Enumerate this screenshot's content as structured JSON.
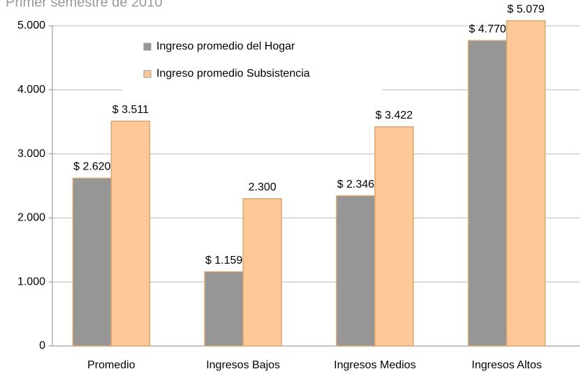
{
  "chart_data": {
    "type": "bar",
    "title": "Primer semestre de 2010",
    "categories": [
      "Promedio",
      "Ingresos Bajos",
      "Ingresos Medios",
      "Ingresos Altos"
    ],
    "series": [
      {
        "name": "Ingreso promedio del Hogar",
        "color": "#969696",
        "values": [
          2620,
          1159,
          2346,
          4770
        ],
        "value_labels": [
          "$ 2.620",
          "$ 1.159",
          "$ 2.346",
          "$ 4.770"
        ]
      },
      {
        "name": "Ingreso promedio Subsistencia",
        "color": "#ffc896",
        "values": [
          3511,
          2300,
          3422,
          5079
        ],
        "value_labels": [
          "$ 3.511",
          "2.300",
          "$ 3.422",
          "$ 5.079"
        ]
      }
    ],
    "ylim": [
      0,
      5000
    ],
    "yticks": [
      0,
      {
        "value": 1000,
        "label": "1.000"
      },
      {
        "value": 2000,
        "label": "2.000"
      },
      {
        "value": 3000,
        "label": "3.000"
      },
      {
        "value": 4000,
        "label": "4.000"
      },
      {
        "value": 5000,
        "label": "5.000"
      }
    ],
    "grid": true,
    "legend": "top-left"
  }
}
